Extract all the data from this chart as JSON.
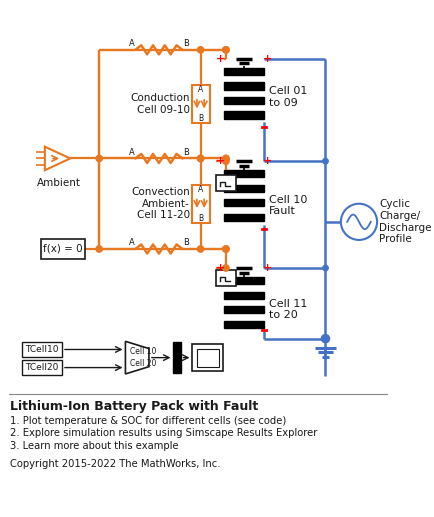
{
  "title": "Lithium-Ion Battery Pack with Fault",
  "bullet1": "1. Plot temperature & SOC for different cells (see code)",
  "bullet2": "2. Explore simulation results using Simscape Results Explorer",
  "bullet3": "3. Learn more about this example",
  "copyright": "Copyright 2015-2022 The MathWorks, Inc.",
  "orange": "#E87722",
  "blue": "#4472C4",
  "dark": "#1a1a1a",
  "bg": "#FFFFFF",
  "label_ambient": "Ambient",
  "label_cond": "Conduction\nCell 09-10",
  "label_conv": "Convection\nAmbient-\nCell 11-20",
  "label_cell0109": "Cell 01\nto 09",
  "label_cell10": "Cell 10\nFault",
  "label_cell1120": "Cell 11\nto 20",
  "label_cyclic": "Cyclic\nCharge/\nDischarge\nProfile",
  "label_fx": "f(x) = 0",
  "label_tcell10": "TCell10",
  "label_tcell20": "TCell20",
  "label_cell10_mux": "Cell 10",
  "label_cell20_mux": "Cell 20"
}
